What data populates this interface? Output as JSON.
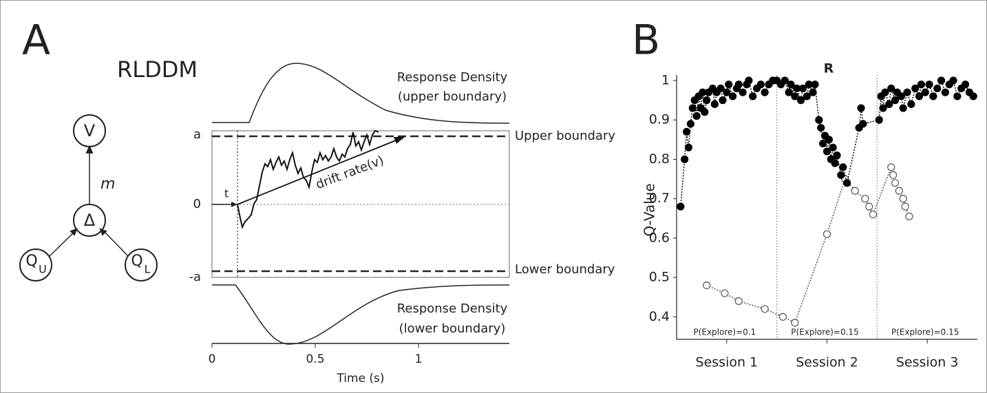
{
  "panel_a": {
    "label": "A",
    "title": "RLDDM",
    "nodes": [
      {
        "label": "V"
      },
      {
        "label": "Δ"
      },
      {
        "label": "Q",
        "subscript": "U"
      },
      {
        "label": "Q",
        "subscript": "L"
      }
    ],
    "edge_label": "m",
    "ddm": {
      "xlim": [
        0,
        1.44
      ],
      "xticks": [
        0,
        0.5,
        1
      ],
      "xlabel": "Time (s)",
      "ylabels": [
        "a",
        "0",
        "-a"
      ],
      "nondecision_label": "t",
      "drift_label": "drift rate(v)",
      "upper_density": [
        "Response Density",
        "(upper boundary)"
      ],
      "lower_density": [
        "Response Density",
        "(lower boundary)"
      ],
      "upper_boundary": "Upper boundary",
      "lower_boundary": "Lower boundary"
    }
  },
  "panel_b": {
    "label": "B",
    "marker_label": "R"
  },
  "chart_data": {
    "type": "scatter",
    "ylabel": "Q-Value",
    "xlim": [
      0,
      150
    ],
    "ylim": [
      0.343,
      1.0
    ],
    "yticks": [
      0.4,
      0.5,
      0.6,
      0.7,
      0.8,
      0.9,
      1
    ],
    "xticks": [
      {
        "value": 25,
        "label": "Session 1"
      },
      {
        "value": 75,
        "label": "Session 2"
      },
      {
        "value": 125,
        "label": "Session 3"
      }
    ],
    "session_boundaries": [
      50,
      100
    ],
    "annotations": [
      "P(Explore)=0.1",
      "P(Explore)=0.15",
      "P(Explore)=0.15"
    ],
    "series": [
      {
        "color": "#000000",
        "fill": "#000000",
        "x": [
          2,
          4,
          5,
          6,
          7,
          8,
          9,
          10,
          11,
          12,
          13,
          14,
          15,
          16,
          18,
          19,
          20,
          22,
          23,
          25,
          26,
          28,
          30,
          31,
          33,
          35,
          36,
          38,
          40,
          42,
          44,
          46,
          48,
          50,
          52,
          54,
          56,
          57,
          59,
          60,
          62,
          63,
          65,
          66,
          68,
          69,
          71,
          72,
          73,
          74,
          75,
          76,
          77,
          78,
          79,
          80,
          82,
          83,
          85,
          91,
          92,
          93,
          101,
          102,
          103,
          104,
          106,
          107,
          109,
          110,
          112,
          113,
          115,
          117,
          119,
          121,
          122,
          124,
          126,
          128,
          130,
          132,
          134,
          136,
          138,
          140,
          142,
          144,
          146,
          148
        ],
        "values": [
          0.68,
          0.8,
          0.87,
          0.83,
          0.89,
          0.93,
          0.95,
          0.91,
          0.96,
          0.93,
          0.97,
          0.92,
          0.95,
          0.97,
          0.98,
          0.94,
          0.97,
          0.98,
          0.95,
          0.97,
          0.99,
          0.96,
          0.98,
          0.99,
          0.97,
          0.99,
          1.0,
          0.96,
          0.98,
          0.99,
          0.97,
          0.99,
          1.0,
          1.0,
          0.99,
          1.0,
          0.97,
          0.99,
          0.96,
          0.98,
          0.95,
          0.98,
          0.96,
          0.99,
          0.97,
          0.99,
          0.9,
          0.88,
          0.84,
          0.86,
          0.82,
          0.85,
          0.8,
          0.83,
          0.79,
          0.81,
          0.76,
          0.78,
          0.74,
          0.88,
          0.93,
          0.89,
          0.9,
          0.96,
          0.93,
          0.97,
          0.94,
          0.98,
          0.95,
          0.97,
          0.96,
          0.93,
          0.97,
          0.94,
          0.98,
          0.96,
          0.99,
          0.97,
          0.99,
          0.96,
          0.98,
          1.0,
          0.97,
          0.99,
          1.0,
          0.96,
          0.98,
          0.99,
          0.97,
          0.96
        ]
      },
      {
        "color": "#555555",
        "fill": "#ffffff",
        "x": [
          15,
          24,
          31,
          44,
          53,
          59,
          75,
          84,
          89,
          94,
          96,
          98,
          107,
          108,
          109,
          111,
          113,
          114,
          116
        ],
        "values": [
          0.48,
          0.46,
          0.44,
          0.42,
          0.4,
          0.385,
          0.61,
          0.75,
          0.72,
          0.7,
          0.68,
          0.66,
          0.78,
          0.76,
          0.74,
          0.72,
          0.7,
          0.68,
          0.655
        ]
      }
    ]
  }
}
